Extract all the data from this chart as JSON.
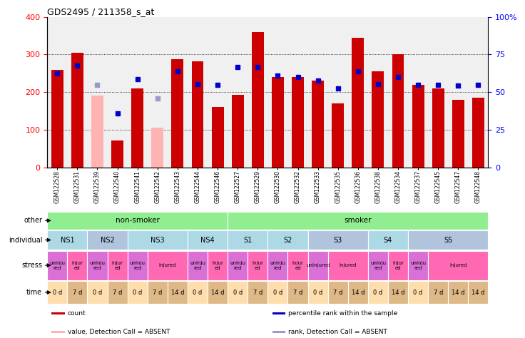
{
  "title": "GDS2495 / 211358_s_at",
  "samples": [
    "GSM122528",
    "GSM122531",
    "GSM122539",
    "GSM122540",
    "GSM122541",
    "GSM122542",
    "GSM122543",
    "GSM122544",
    "GSM122546",
    "GSM122527",
    "GSM122529",
    "GSM122530",
    "GSM122532",
    "GSM122533",
    "GSM122535",
    "GSM122536",
    "GSM122538",
    "GSM122534",
    "GSM122537",
    "GSM122545",
    "GSM122547",
    "GSM122548"
  ],
  "count_values": [
    260,
    305,
    190,
    72,
    210,
    105,
    288,
    282,
    160,
    192,
    360,
    240,
    240,
    230,
    170,
    345,
    255,
    300,
    220,
    210,
    180,
    185
  ],
  "rank_values": [
    250,
    270,
    220,
    143,
    234,
    183,
    255,
    222,
    220,
    267,
    267,
    243,
    240,
    230,
    210,
    256,
    222,
    240,
    220,
    220,
    218,
    220
  ],
  "count_absent": [
    false,
    false,
    true,
    false,
    false,
    true,
    false,
    false,
    false,
    false,
    false,
    false,
    false,
    false,
    false,
    false,
    false,
    false,
    false,
    false,
    false,
    false
  ],
  "rank_absent": [
    false,
    false,
    true,
    false,
    false,
    true,
    false,
    false,
    false,
    false,
    false,
    false,
    false,
    false,
    false,
    false,
    false,
    false,
    false,
    false,
    false,
    false
  ],
  "left_ylim": [
    0,
    400
  ],
  "right_ylim": [
    0,
    100
  ],
  "left_yticks": [
    0,
    100,
    200,
    300,
    400
  ],
  "right_yticks": [
    0,
    25,
    50,
    75,
    100
  ],
  "right_yticklabels": [
    "0",
    "25",
    "50",
    "75",
    "100%"
  ],
  "hline_values": [
    100,
    200,
    300
  ],
  "bar_color_normal": "#CC0000",
  "bar_color_absent": "#FFB3B3",
  "rank_color_normal": "#0000CC",
  "rank_color_absent": "#9999CC",
  "other_groups": [
    {
      "label": "non-smoker",
      "start": 0,
      "end": 8,
      "color": "#90EE90"
    },
    {
      "label": "smoker",
      "start": 9,
      "end": 21,
      "color": "#90EE90"
    }
  ],
  "individual_groups": [
    {
      "label": "NS1",
      "start": 0,
      "end": 1,
      "color": "#ADD8E6"
    },
    {
      "label": "NS2",
      "start": 2,
      "end": 3,
      "color": "#B0C4DE"
    },
    {
      "label": "NS3",
      "start": 4,
      "end": 6,
      "color": "#ADD8E6"
    },
    {
      "label": "NS4",
      "start": 7,
      "end": 8,
      "color": "#ADD8E6"
    },
    {
      "label": "S1",
      "start": 9,
      "end": 10,
      "color": "#ADD8E6"
    },
    {
      "label": "S2",
      "start": 11,
      "end": 12,
      "color": "#ADD8E6"
    },
    {
      "label": "S3",
      "start": 13,
      "end": 15,
      "color": "#B0C4DE"
    },
    {
      "label": "S4",
      "start": 16,
      "end": 17,
      "color": "#ADD8E6"
    },
    {
      "label": "S5",
      "start": 18,
      "end": 21,
      "color": "#B0C4DE"
    }
  ],
  "stress_groups": [
    {
      "label": "uninju\nred",
      "start": 0,
      "end": 0,
      "color": "#DA70D6"
    },
    {
      "label": "injur\ned",
      "start": 1,
      "end": 1,
      "color": "#FF69B4"
    },
    {
      "label": "uninju\nred",
      "start": 2,
      "end": 2,
      "color": "#DA70D6"
    },
    {
      "label": "injur\ned",
      "start": 3,
      "end": 3,
      "color": "#FF69B4"
    },
    {
      "label": "uninju\nred",
      "start": 4,
      "end": 4,
      "color": "#DA70D6"
    },
    {
      "label": "injured",
      "start": 5,
      "end": 6,
      "color": "#FF69B4"
    },
    {
      "label": "uninju\nred",
      "start": 7,
      "end": 7,
      "color": "#DA70D6"
    },
    {
      "label": "injur\ned",
      "start": 8,
      "end": 8,
      "color": "#FF69B4"
    },
    {
      "label": "uninju\nred",
      "start": 9,
      "end": 9,
      "color": "#DA70D6"
    },
    {
      "label": "injur\ned",
      "start": 10,
      "end": 10,
      "color": "#FF69B4"
    },
    {
      "label": "uninju\nred",
      "start": 11,
      "end": 11,
      "color": "#DA70D6"
    },
    {
      "label": "injur\ned",
      "start": 12,
      "end": 12,
      "color": "#FF69B4"
    },
    {
      "label": "uninjured",
      "start": 13,
      "end": 13,
      "color": "#DA70D6"
    },
    {
      "label": "injured",
      "start": 14,
      "end": 15,
      "color": "#FF69B4"
    },
    {
      "label": "uninju\nred",
      "start": 16,
      "end": 16,
      "color": "#DA70D6"
    },
    {
      "label": "injur\ned",
      "start": 17,
      "end": 17,
      "color": "#FF69B4"
    },
    {
      "label": "uninju\nred",
      "start": 18,
      "end": 18,
      "color": "#DA70D6"
    },
    {
      "label": "injured",
      "start": 19,
      "end": 21,
      "color": "#FF69B4"
    }
  ],
  "time_groups": [
    {
      "label": "0 d",
      "start": 0,
      "end": 0,
      "color": "#FFDEAD"
    },
    {
      "label": "7 d",
      "start": 1,
      "end": 1,
      "color": "#DEB887"
    },
    {
      "label": "0 d",
      "start": 2,
      "end": 2,
      "color": "#FFDEAD"
    },
    {
      "label": "7 d",
      "start": 3,
      "end": 3,
      "color": "#DEB887"
    },
    {
      "label": "0 d",
      "start": 4,
      "end": 4,
      "color": "#FFDEAD"
    },
    {
      "label": "7 d",
      "start": 5,
      "end": 5,
      "color": "#DEB887"
    },
    {
      "label": "14 d",
      "start": 6,
      "end": 6,
      "color": "#DEB887"
    },
    {
      "label": "0 d",
      "start": 7,
      "end": 7,
      "color": "#FFDEAD"
    },
    {
      "label": "14 d",
      "start": 8,
      "end": 8,
      "color": "#DEB887"
    },
    {
      "label": "0 d",
      "start": 9,
      "end": 9,
      "color": "#FFDEAD"
    },
    {
      "label": "7 d",
      "start": 10,
      "end": 10,
      "color": "#DEB887"
    },
    {
      "label": "0 d",
      "start": 11,
      "end": 11,
      "color": "#FFDEAD"
    },
    {
      "label": "7 d",
      "start": 12,
      "end": 12,
      "color": "#DEB887"
    },
    {
      "label": "0 d",
      "start": 13,
      "end": 13,
      "color": "#FFDEAD"
    },
    {
      "label": "7 d",
      "start": 14,
      "end": 14,
      "color": "#DEB887"
    },
    {
      "label": "14 d",
      "start": 15,
      "end": 15,
      "color": "#DEB887"
    },
    {
      "label": "0 d",
      "start": 16,
      "end": 16,
      "color": "#FFDEAD"
    },
    {
      "label": "14 d",
      "start": 17,
      "end": 17,
      "color": "#DEB887"
    },
    {
      "label": "0 d",
      "start": 18,
      "end": 18,
      "color": "#FFDEAD"
    },
    {
      "label": "7 d",
      "start": 19,
      "end": 19,
      "color": "#DEB887"
    },
    {
      "label": "14 d",
      "start": 20,
      "end": 20,
      "color": "#DEB887"
    },
    {
      "label": "14 d",
      "start": 21,
      "end": 21,
      "color": "#DEB887"
    }
  ],
  "legend_items": [
    {
      "label": "count",
      "color": "#CC0000"
    },
    {
      "label": "percentile rank within the sample",
      "color": "#0000CC"
    },
    {
      "label": "value, Detection Call = ABSENT",
      "color": "#FFB3B3"
    },
    {
      "label": "rank, Detection Call = ABSENT",
      "color": "#9999CC"
    }
  ]
}
